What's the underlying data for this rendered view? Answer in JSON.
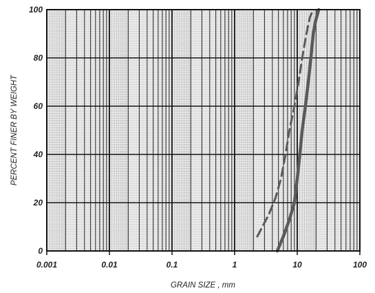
{
  "chart_data": {
    "type": "line",
    "x_scale": "log",
    "xlabel": "GRAIN SIZE , mm",
    "ylabel": "PERCENT FINER BY WEIGHT",
    "xlim": [
      0.001,
      100
    ],
    "ylim": [
      0,
      100
    ],
    "x_ticks": [
      "0.001",
      "0.01",
      "0.1",
      "1",
      "10",
      "100"
    ],
    "y_ticks": [
      "0",
      "20",
      "40",
      "60",
      "80",
      "100"
    ],
    "grid": true,
    "series": [
      {
        "style": "solid",
        "color": "#5a5a5a",
        "points": [
          [
            4.8,
            0
          ],
          [
            6,
            6
          ],
          [
            7.5,
            13
          ],
          [
            9,
            20
          ],
          [
            10,
            30
          ],
          [
            11,
            40
          ],
          [
            12,
            50
          ],
          [
            13.5,
            60
          ],
          [
            15,
            70
          ],
          [
            16.5,
            80
          ],
          [
            18,
            90
          ],
          [
            19.5,
            95
          ],
          [
            22,
            100
          ]
        ]
      },
      {
        "style": "dashed",
        "color": "#5a5a5a",
        "points": [
          [
            2.3,
            6
          ],
          [
            3.5,
            15
          ],
          [
            4.5,
            22
          ],
          [
            5.5,
            30
          ],
          [
            6.5,
            40
          ],
          [
            7.5,
            50
          ],
          [
            9,
            60
          ],
          [
            10.5,
            70
          ],
          [
            12,
            80
          ],
          [
            14,
            90
          ],
          [
            16,
            97
          ],
          [
            18,
            100
          ]
        ]
      }
    ]
  }
}
